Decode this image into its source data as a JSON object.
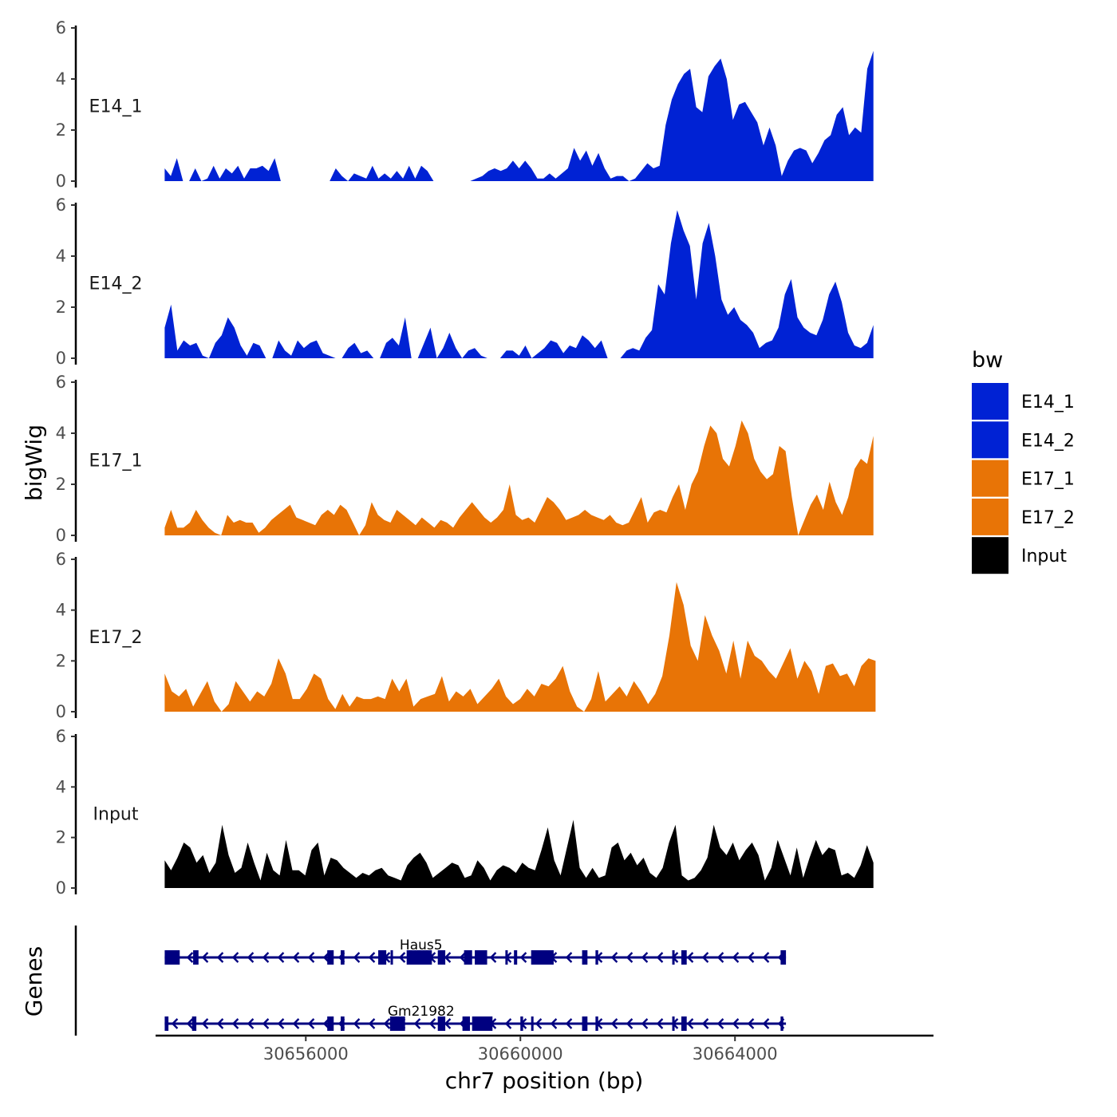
{
  "chart_data": {
    "type": "area",
    "ylabel": "bigWig",
    "xlabel": "chr7 position (bp)",
    "xlim": [
      30653200,
      30667700
    ],
    "xticks": [
      30656000,
      30660000,
      30664000
    ],
    "xtick_labels": [
      "30656000",
      "30660000",
      "30664000"
    ],
    "ylim": [
      0,
      6
    ],
    "yticks": [
      0,
      2,
      4,
      6
    ],
    "ytick_labels": [
      "0",
      "2",
      "4",
      "6"
    ],
    "legend": {
      "title": "bw",
      "position": "right",
      "entries": [
        {
          "label": "E14_1",
          "color": "#0022D4"
        },
        {
          "label": "E14_2",
          "color": "#0022D4"
        },
        {
          "label": "E17_1",
          "color": "#E87406"
        },
        {
          "label": "E17_2",
          "color": "#E87406"
        },
        {
          "label": "Input",
          "color": "#000000"
        }
      ]
    },
    "tracks": [
      {
        "name": "E14_1",
        "color": "#0022D4",
        "x_range": [
          30653370,
          30666580
        ],
        "values": [
          0.5,
          0.2,
          0.9,
          0,
          0,
          0.5,
          0,
          0.1,
          0.6,
          0.1,
          0.5,
          0.3,
          0.6,
          0.1,
          0.5,
          0.5,
          0.6,
          0.4,
          0.9,
          0,
          0,
          0,
          0,
          0,
          0,
          0,
          0,
          0,
          0.5,
          0.2,
          0,
          0.3,
          0.2,
          0.1,
          0.6,
          0.1,
          0.3,
          0.1,
          0.4,
          0.1,
          0.6,
          0.1,
          0.6,
          0.4,
          0,
          0,
          0,
          0,
          0,
          0,
          0,
          0.1,
          0.2,
          0.4,
          0.5,
          0.4,
          0.5,
          0.8,
          0.5,
          0.8,
          0.5,
          0.1,
          0.1,
          0.3,
          0.1,
          0.3,
          0.5,
          1.3,
          0.8,
          1.2,
          0.6,
          1.1,
          0.5,
          0.1,
          0.2,
          0.2,
          0,
          0.1,
          0.4,
          0.7,
          0.5,
          0.6,
          2.2,
          3.2,
          3.8,
          4.2,
          4.4,
          2.9,
          2.7,
          4.1,
          4.5,
          4.8,
          4.0,
          2.4,
          3.0,
          3.1,
          2.7,
          2.3,
          1.4,
          2.1,
          1.4,
          0.2,
          0.8,
          1.2,
          1.3,
          1.2,
          0.7,
          1.1,
          1.6,
          1.8,
          2.6,
          2.9,
          1.8,
          2.1,
          1.9,
          4.4,
          5.1
        ]
      },
      {
        "name": "E14_2",
        "color": "#0022D4",
        "x_range": [
          30653370,
          30666580
        ],
        "values": [
          1.2,
          2.1,
          0.3,
          0.7,
          0.5,
          0.6,
          0.1,
          0,
          0.6,
          0.9,
          1.6,
          1.2,
          0.5,
          0.1,
          0.6,
          0.5,
          0,
          0,
          0.7,
          0.3,
          0.1,
          0.7,
          0.4,
          0.6,
          0.7,
          0.2,
          0.1,
          0,
          0,
          0.4,
          0.6,
          0.2,
          0.3,
          0,
          0,
          0.6,
          0.8,
          0.5,
          1.6,
          0,
          0,
          0.6,
          1.2,
          0,
          0.4,
          1.0,
          0.4,
          0,
          0.3,
          0.4,
          0.1,
          0,
          0,
          0,
          0.3,
          0.3,
          0.1,
          0.5,
          0,
          0.2,
          0.4,
          0.7,
          0.6,
          0.2,
          0.5,
          0.4,
          0.9,
          0.7,
          0.4,
          0.7,
          0,
          0,
          0,
          0.3,
          0.4,
          0.3,
          0.8,
          1.1,
          2.9,
          2.5,
          4.5,
          5.8,
          5.0,
          4.4,
          2.3,
          4.5,
          5.3,
          4.0,
          2.3,
          1.7,
          2.0,
          1.5,
          1.3,
          1.0,
          0.4,
          0.6,
          0.7,
          1.2,
          2.5,
          3.1,
          1.6,
          1.2,
          1.0,
          0.9,
          1.5,
          2.5,
          3.0,
          2.2,
          1.0,
          0.5,
          0.4,
          0.6,
          1.3
        ]
      },
      {
        "name": "E17_1",
        "color": "#E87406",
        "x_range": [
          30653370,
          30666580
        ],
        "values": [
          0.3,
          1.0,
          0.3,
          0.3,
          0.5,
          1.0,
          0.6,
          0.3,
          0.1,
          0,
          0.8,
          0.5,
          0.6,
          0.5,
          0.5,
          0.1,
          0.3,
          0.6,
          0.8,
          1.0,
          1.2,
          0.7,
          0.6,
          0.5,
          0.4,
          0.8,
          1.0,
          0.8,
          1.2,
          1.0,
          0.5,
          0,
          0.4,
          1.3,
          0.8,
          0.6,
          0.5,
          1.0,
          0.8,
          0.6,
          0.4,
          0.7,
          0.5,
          0.3,
          0.6,
          0.5,
          0.3,
          0.7,
          1.0,
          1.3,
          1.0,
          0.7,
          0.5,
          0.7,
          1.0,
          2.0,
          0.8,
          0.6,
          0.7,
          0.5,
          1.0,
          1.5,
          1.3,
          1.0,
          0.6,
          0.7,
          0.8,
          1.0,
          0.8,
          0.7,
          0.6,
          0.8,
          0.5,
          0.4,
          0.5,
          1.0,
          1.5,
          0.5,
          0.9,
          1.0,
          0.9,
          1.5,
          2.0,
          1.0,
          2.0,
          2.5,
          3.5,
          4.3,
          4.0,
          3.0,
          2.7,
          3.5,
          4.5,
          4.0,
          3.0,
          2.5,
          2.2,
          2.4,
          3.5,
          3.3,
          1.5,
          0,
          0.6,
          1.2,
          1.6,
          1.0,
          2.1,
          1.3,
          0.8,
          1.5,
          2.6,
          3.0,
          2.8,
          3.9
        ]
      },
      {
        "name": "E17_2",
        "color": "#E87406",
        "x_range": [
          30653370,
          30666620
        ],
        "values": [
          1.5,
          0.8,
          0.6,
          0.9,
          0.2,
          0.7,
          1.2,
          0.4,
          0,
          0.3,
          1.2,
          0.8,
          0.4,
          0.8,
          0.6,
          1.1,
          2.1,
          1.5,
          0.5,
          0.5,
          0.9,
          1.5,
          1.3,
          0.5,
          0.1,
          0.7,
          0.2,
          0.6,
          0.5,
          0.5,
          0.6,
          0.5,
          1.3,
          0.8,
          1.3,
          0.2,
          0.5,
          0.6,
          0.7,
          1.4,
          0.4,
          0.8,
          0.6,
          0.9,
          0.3,
          0.6,
          0.9,
          1.3,
          0.6,
          0.3,
          0.5,
          0.9,
          0.6,
          1.1,
          1.0,
          1.3,
          1.8,
          0.8,
          0.2,
          0,
          0.5,
          1.6,
          0.4,
          0.7,
          1.0,
          0.6,
          1.2,
          0.8,
          0.3,
          0.7,
          1.4,
          3.0,
          5.1,
          4.2,
          2.6,
          2.0,
          3.8,
          3.0,
          2.4,
          1.5,
          2.8,
          1.3,
          2.8,
          2.2,
          2.0,
          1.6,
          1.3,
          1.9,
          2.5,
          1.3,
          2.0,
          1.6,
          0.7,
          1.8,
          1.9,
          1.4,
          1.5,
          1.0,
          1.8,
          2.1,
          2.0
        ]
      },
      {
        "name": "Input",
        "color": "#000000",
        "x_range": [
          30653370,
          30666580
        ],
        "values": [
          1.1,
          0.7,
          1.2,
          1.8,
          1.6,
          1.0,
          1.3,
          0.6,
          1.0,
          2.5,
          1.3,
          0.6,
          0.8,
          1.8,
          1.0,
          0.3,
          1.4,
          0.7,
          0.5,
          1.9,
          0.7,
          0.7,
          0.5,
          1.5,
          1.8,
          0.5,
          1.2,
          1.1,
          0.8,
          0.6,
          0.4,
          0.6,
          0.5,
          0.7,
          0.8,
          0.5,
          0.4,
          0.3,
          0.9,
          1.2,
          1.4,
          1.0,
          0.4,
          0.6,
          0.8,
          1.0,
          0.9,
          0.4,
          0.5,
          1.1,
          0.8,
          0.3,
          0.7,
          0.9,
          0.8,
          0.6,
          1.0,
          0.8,
          0.7,
          1.5,
          2.4,
          1.1,
          0.5,
          1.6,
          2.7,
          0.8,
          0.4,
          0.8,
          0.4,
          0.5,
          1.6,
          1.8,
          1.1,
          1.4,
          0.9,
          1.2,
          0.6,
          0.4,
          0.8,
          1.8,
          2.5,
          0.5,
          0.3,
          0.4,
          0.7,
          1.2,
          2.5,
          1.6,
          1.3,
          1.8,
          1.1,
          1.5,
          1.8,
          1.3,
          0.3,
          0.8,
          1.9,
          1.2,
          0.5,
          1.6,
          0.4,
          1.2,
          1.9,
          1.3,
          1.6,
          1.5,
          0.5,
          0.6,
          0.4,
          0.9,
          1.7,
          1.0
        ]
      }
    ],
    "genes_track": {
      "title": "Genes",
      "color": "#000080",
      "genes": [
        {
          "name": "Haus5",
          "start": 30653370,
          "end": 30664950,
          "strand": "-",
          "exons": [
            [
              30653370,
              30653650
            ],
            [
              30653900,
              30654000
            ],
            [
              30656400,
              30656520
            ],
            [
              30656650,
              30656720
            ],
            [
              30657350,
              30657500
            ],
            [
              30657580,
              30657620
            ],
            [
              30657880,
              30658350
            ],
            [
              30658460,
              30658600
            ],
            [
              30658950,
              30659100
            ],
            [
              30659150,
              30659380
            ],
            [
              30659720,
              30659760
            ],
            [
              30659880,
              30659940
            ],
            [
              30660200,
              30660620
            ],
            [
              30661150,
              30661250
            ],
            [
              30661400,
              30661450
            ],
            [
              30662830,
              30662850
            ],
            [
              30663000,
              30663100
            ],
            [
              30664850,
              30664950
            ]
          ]
        },
        {
          "name": "Gm21982",
          "start": 30653370,
          "end": 30664950,
          "strand": "-",
          "exons": [
            [
              30653370,
              30653440
            ],
            [
              30653880,
              30653960
            ],
            [
              30656400,
              30656520
            ],
            [
              30656650,
              30656720
            ],
            [
              30657570,
              30657850
            ],
            [
              30658460,
              30658600
            ],
            [
              30658920,
              30659060
            ],
            [
              30659100,
              30659480
            ],
            [
              30660000,
              30660050
            ],
            [
              30660200,
              30660240
            ],
            [
              30661150,
              30661250
            ],
            [
              30661400,
              30661450
            ],
            [
              30662830,
              30662850
            ],
            [
              30663000,
              30663100
            ],
            [
              30664850,
              30664900
            ]
          ]
        }
      ]
    }
  }
}
